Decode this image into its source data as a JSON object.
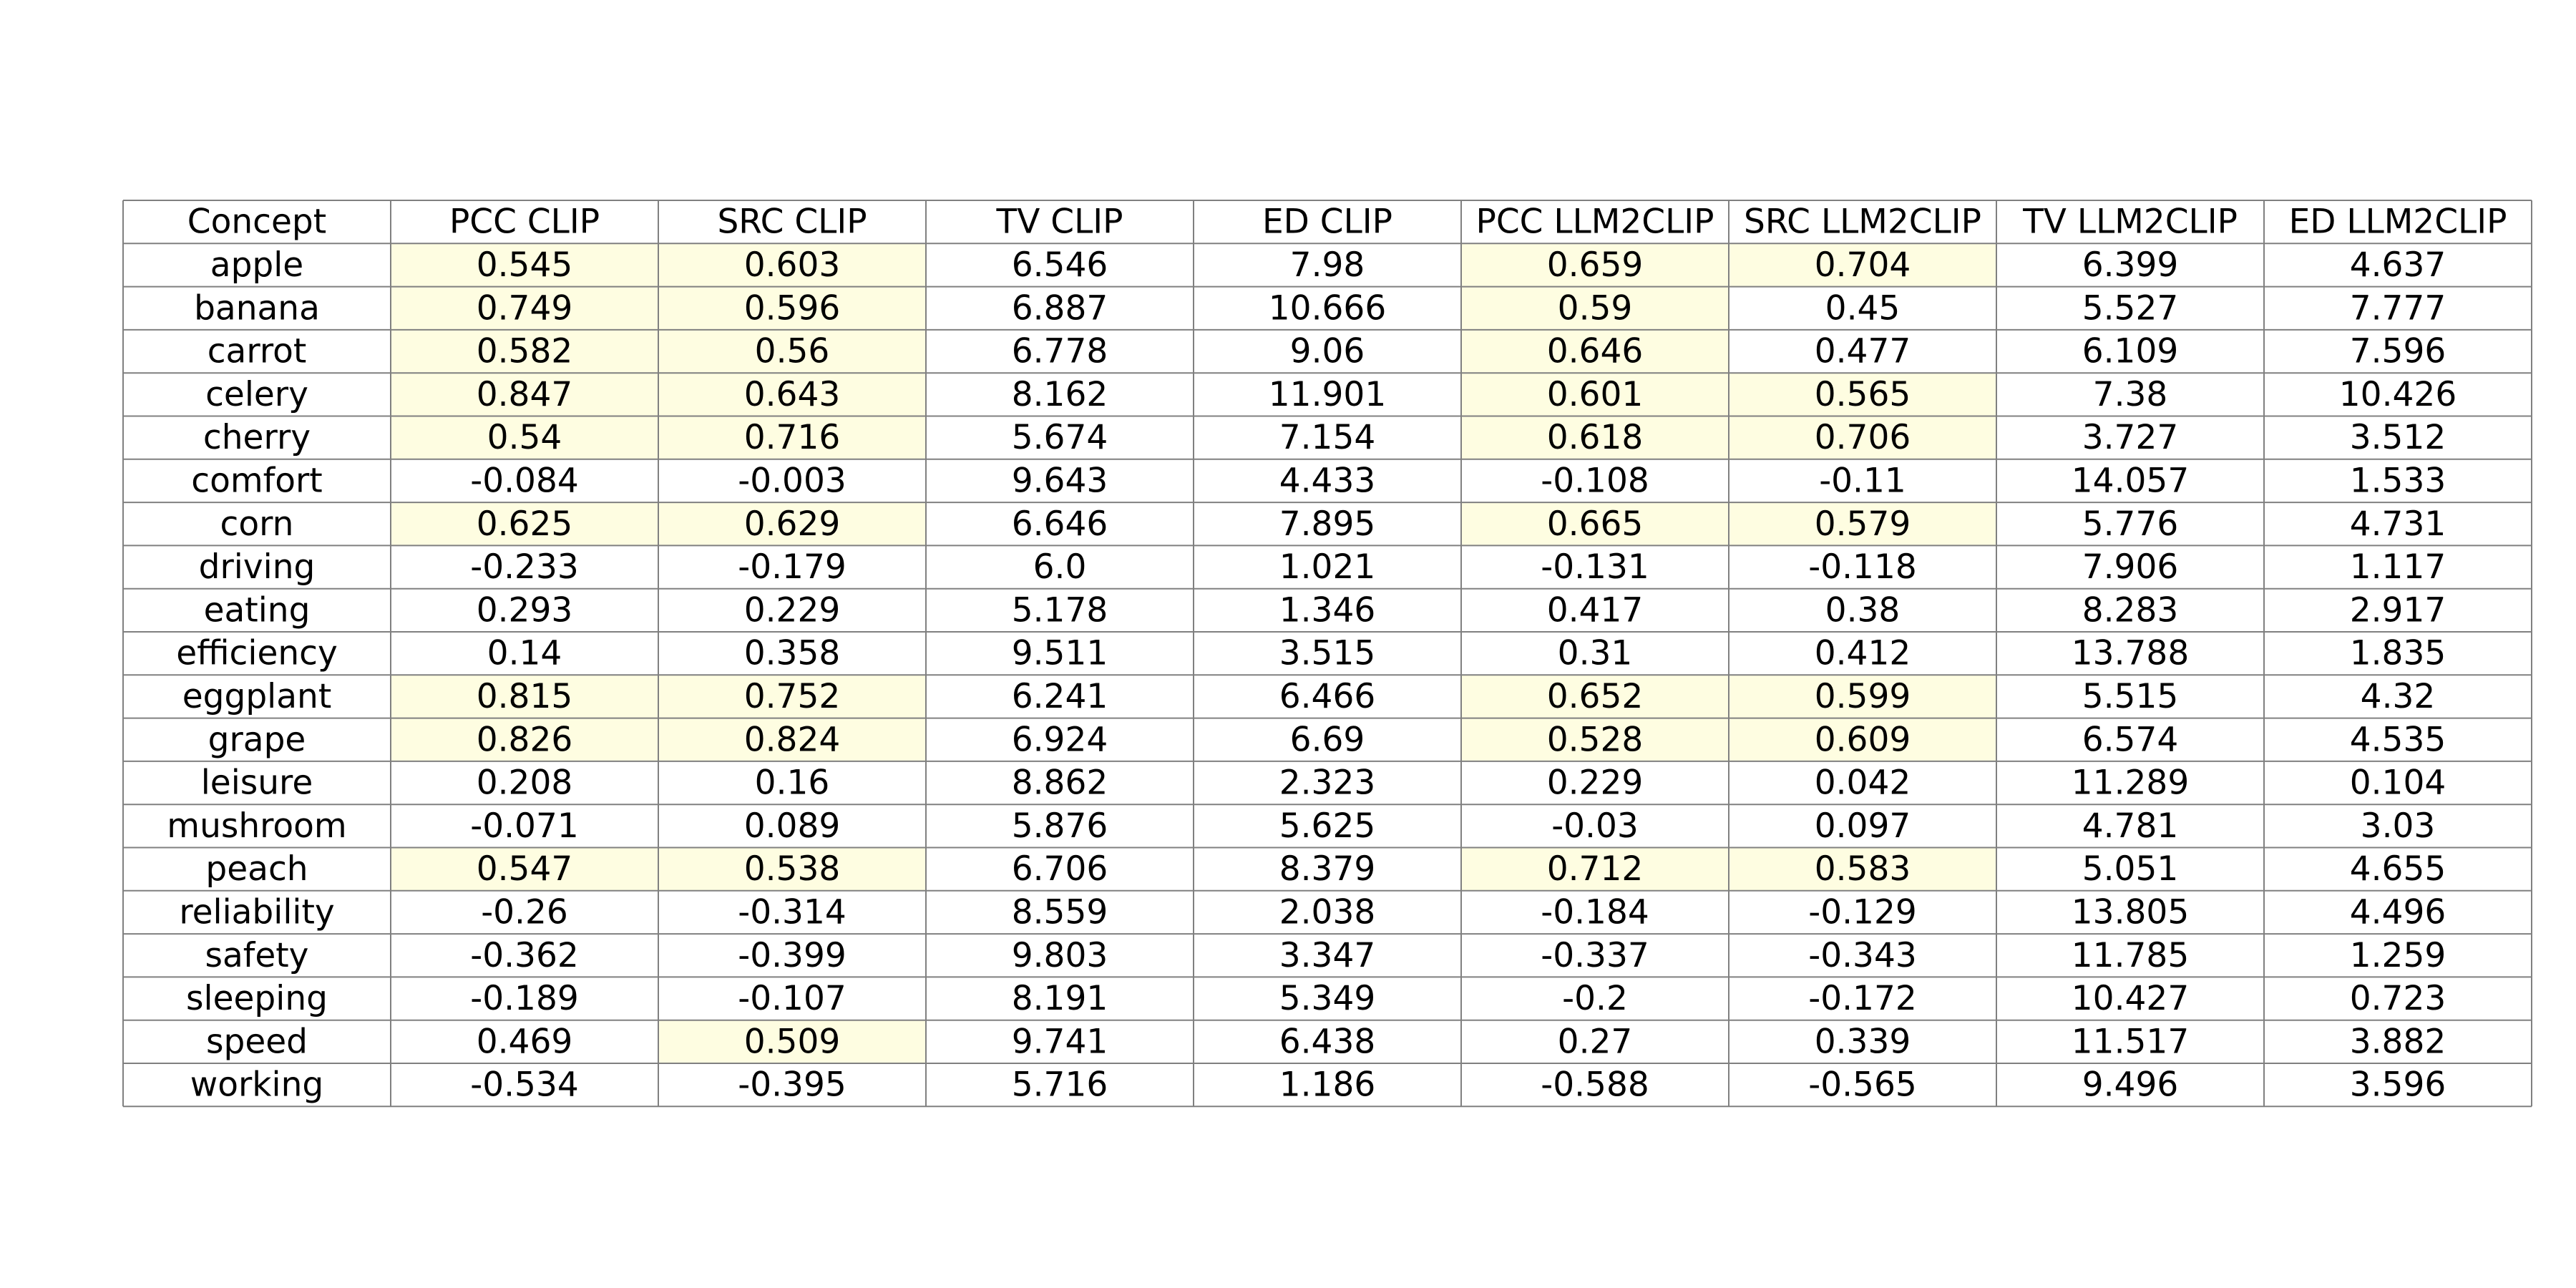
{
  "chart_data": {
    "type": "table",
    "columns": [
      "Concept",
      "PCC CLIP",
      "SRC CLIP",
      "TV CLIP",
      "ED CLIP",
      "PCC LLM2CLIP",
      "SRC LLM2CLIP",
      "TV LLM2CLIP",
      "ED LLM2CLIP"
    ],
    "rows": [
      [
        "apple",
        "0.545",
        "0.603",
        "6.546",
        "7.98",
        "0.659",
        "0.704",
        "6.399",
        "4.637"
      ],
      [
        "banana",
        "0.749",
        "0.596",
        "6.887",
        "10.666",
        "0.59",
        "0.45",
        "5.527",
        "7.777"
      ],
      [
        "carrot",
        "0.582",
        "0.56",
        "6.778",
        "9.06",
        "0.646",
        "0.477",
        "6.109",
        "7.596"
      ],
      [
        "celery",
        "0.847",
        "0.643",
        "8.162",
        "11.901",
        "0.601",
        "0.565",
        "7.38",
        "10.426"
      ],
      [
        "cherry",
        "0.54",
        "0.716",
        "5.674",
        "7.154",
        "0.618",
        "0.706",
        "3.727",
        "3.512"
      ],
      [
        "comfort",
        "-0.084",
        "-0.003",
        "9.643",
        "4.433",
        "-0.108",
        "-0.11",
        "14.057",
        "1.533"
      ],
      [
        "corn",
        "0.625",
        "0.629",
        "6.646",
        "7.895",
        "0.665",
        "0.579",
        "5.776",
        "4.731"
      ],
      [
        "driving",
        "-0.233",
        "-0.179",
        "6.0",
        "1.021",
        "-0.131",
        "-0.118",
        "7.906",
        "1.117"
      ],
      [
        "eating",
        "0.293",
        "0.229",
        "5.178",
        "1.346",
        "0.417",
        "0.38",
        "8.283",
        "2.917"
      ],
      [
        "efficiency",
        "0.14",
        "0.358",
        "9.511",
        "3.515",
        "0.31",
        "0.412",
        "13.788",
        "1.835"
      ],
      [
        "eggplant",
        "0.815",
        "0.752",
        "6.241",
        "6.466",
        "0.652",
        "0.599",
        "5.515",
        "4.32"
      ],
      [
        "grape",
        "0.826",
        "0.824",
        "6.924",
        "6.69",
        "0.528",
        "0.609",
        "6.574",
        "4.535"
      ],
      [
        "leisure",
        "0.208",
        "0.16",
        "8.862",
        "2.323",
        "0.229",
        "0.042",
        "11.289",
        "0.104"
      ],
      [
        "mushroom",
        "-0.071",
        "0.089",
        "5.876",
        "5.625",
        "-0.03",
        "0.097",
        "4.781",
        "3.03"
      ],
      [
        "peach",
        "0.547",
        "0.538",
        "6.706",
        "8.379",
        "0.712",
        "0.583",
        "5.051",
        "4.655"
      ],
      [
        "reliability",
        "-0.26",
        "-0.314",
        "8.559",
        "2.038",
        "-0.184",
        "-0.129",
        "13.805",
        "4.496"
      ],
      [
        "safety",
        "-0.362",
        "-0.399",
        "9.803",
        "3.347",
        "-0.337",
        "-0.343",
        "11.785",
        "1.259"
      ],
      [
        "sleeping",
        "-0.189",
        "-0.107",
        "8.191",
        "5.349",
        "-0.2",
        "-0.172",
        "10.427",
        "0.723"
      ],
      [
        "speed",
        "0.469",
        "0.509",
        "9.741",
        "6.438",
        "0.27",
        "0.339",
        "11.517",
        "3.882"
      ],
      [
        "working",
        "-0.534",
        "-0.395",
        "5.716",
        "1.186",
        "-0.588",
        "-0.565",
        "9.496",
        "3.596"
      ]
    ],
    "highlight_columns": [
      "PCC CLIP",
      "SRC CLIP",
      "PCC LLM2CLIP",
      "SRC LLM2CLIP"
    ],
    "highlight_threshold": 0.5,
    "highlight_color": "#fefde1",
    "grid_color": "#808080",
    "text_color": "#000000"
  }
}
